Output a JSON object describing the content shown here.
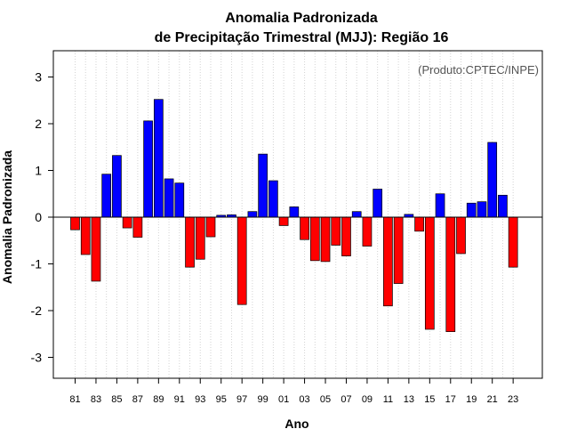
{
  "chart_data": {
    "type": "bar",
    "title": "Anomalia Padronizada",
    "subtitle": "de Precipitação Trimestral (MJJ): Região 16",
    "xlabel": "Ano",
    "ylabel": "Anomalia Padronizada",
    "annotation": "(Produto:CPTEC/INPE)",
    "ylim": [
      -3.45,
      3.55
    ],
    "yticks": [
      "3",
      "2",
      "1",
      "0",
      "-1",
      "-2",
      "-3"
    ],
    "categories": [
      "81",
      "82",
      "83",
      "84",
      "85",
      "86",
      "87",
      "88",
      "89",
      "90",
      "91",
      "92",
      "93",
      "94",
      "95",
      "96",
      "97",
      "98",
      "99",
      "00",
      "01",
      "02",
      "03",
      "04",
      "05",
      "06",
      "07",
      "08",
      "09",
      "10",
      "11",
      "12",
      "13",
      "14",
      "15",
      "16",
      "17",
      "18",
      "19",
      "20",
      "21",
      "22",
      "23"
    ],
    "x_tick_labels": [
      "81",
      "83",
      "85",
      "87",
      "89",
      "91",
      "93",
      "95",
      "97",
      "99",
      "01",
      "03",
      "05",
      "07",
      "09",
      "11",
      "13",
      "15",
      "17",
      "19",
      "21",
      "23"
    ],
    "values": [
      -0.27,
      -0.8,
      -1.37,
      0.92,
      1.32,
      -0.23,
      -0.43,
      2.06,
      2.52,
      0.82,
      0.73,
      -1.07,
      -0.9,
      -0.42,
      0.04,
      0.05,
      -1.87,
      0.12,
      1.35,
      0.78,
      -0.18,
      0.22,
      -0.48,
      -0.93,
      -0.95,
      -0.6,
      -0.83,
      0.12,
      -0.62,
      0.6,
      -1.9,
      -1.42,
      0.06,
      -0.3,
      -2.4,
      0.5,
      -2.45,
      -0.78,
      0.3,
      0.33,
      1.6,
      0.47,
      -1.07
    ],
    "grid": "vertical dotted",
    "legend": "none",
    "colors": {
      "positive": "#0000ff",
      "negative": "#ff0000",
      "zero_line": "#000000",
      "grid": "#d3d3d3"
    }
  }
}
